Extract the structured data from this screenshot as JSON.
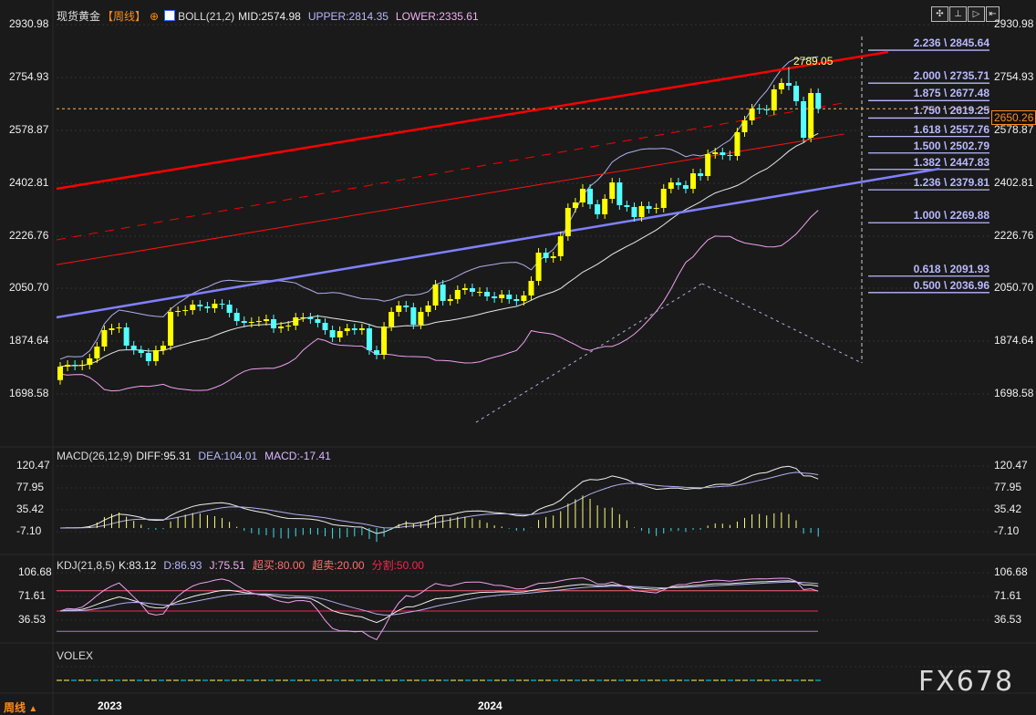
{
  "header": {
    "symbol": "现货黄金",
    "period": "【周线】",
    "boll_label": "BOLL(21,2)",
    "mid": "MID:2574.98",
    "upper": "UPPER:2814.35",
    "lower": "LOWER:2335.61"
  },
  "macd_header": {
    "label": "MACD(26,12,9)",
    "diff": "DIFF:95.31",
    "dea": "DEA:104.01",
    "macd": "MACD:-17.41"
  },
  "kdj_header": {
    "label": "KDJ(21,8,5)",
    "k": "K:83.12",
    "d": "D:86.93",
    "j": "J:75.51",
    "overbought": "超买:80.00",
    "oversold": "超卖:20.00",
    "split": "分割:50.00"
  },
  "volex_label": "VOLEX",
  "period_selector": "周线",
  "watermark": "FX678",
  "toolbar_icons": [
    "crosshair-icon",
    "fit-vertical-icon",
    "play-icon",
    "exit-icon"
  ],
  "price_axis": [
    "2930.98",
    "2754.93",
    "2578.87",
    "2402.81",
    "2226.76",
    "2050.70",
    "1874.64",
    "1698.58"
  ],
  "macd_axis": [
    "120.47",
    "77.95",
    "35.42",
    "-7.10"
  ],
  "kdj_axis": [
    "106.68",
    "71.61",
    "36.53"
  ],
  "time_axis": [
    "2023",
    "2024"
  ],
  "current_price": "2650.26",
  "high_label": "2789.05",
  "fib_levels": [
    {
      "label": "2.236 \\ 2845.64",
      "price": 2845.64
    },
    {
      "label": "2.000 \\ 2735.71",
      "price": 2735.71
    },
    {
      "label": "1.875 \\ 2677.48",
      "price": 2677.48
    },
    {
      "label": "1.750 \\ 2619.25",
      "price": 2619.25
    },
    {
      "label": "1.618 \\ 2557.76",
      "price": 2557.76
    },
    {
      "label": "1.500 \\ 2502.79",
      "price": 2502.79
    },
    {
      "label": "1.382 \\ 2447.83",
      "price": 2447.83
    },
    {
      "label": "1.236 \\ 2379.81",
      "price": 2379.81
    },
    {
      "label": "1.000 \\ 2269.88",
      "price": 2269.88
    },
    {
      "label": "0.618 \\ 2091.93",
      "price": 2091.93
    },
    {
      "label": "0.500 \\ 2036.96",
      "price": 2036.96
    }
  ],
  "colors": {
    "up": "#ffff00",
    "down": "#55ffff",
    "accent": "#ff8c1a",
    "trend_red": "#ff0000",
    "trend_blue": "#8080ff"
  },
  "chart_data": {
    "type": "candlestick",
    "period": "weekly",
    "closes": [
      1789.9,
      1795.9,
      1792.9,
      1795.9,
      1817.3,
      1856.8,
      1911.6,
      1917.6,
      1920.7,
      1859.9,
      1844.6,
      1835.5,
      1808.1,
      1844.6,
      1859.9,
      1972.4,
      1975.4,
      1978.5,
      1996.7,
      1990.7,
      1984.6,
      1999.8,
      1996.7,
      1969.4,
      1941.9,
      1935.9,
      1939.0,
      1941.9,
      1948.1,
      1917.6,
      1923.7,
      1926.8,
      1954.2,
      1954.2,
      1948.1,
      1935.9,
      1911.6,
      1887.2,
      1908.5,
      1917.6,
      1911.6,
      1917.6,
      1844.6,
      1829.4,
      1923.7,
      1972.4,
      1993.7,
      1987.6,
      1929.8,
      1972.4,
      1993.7,
      2063.7,
      2008.9,
      2015.1,
      2045.5,
      2051.6,
      2039.4,
      2039.4,
      2024.2,
      2018.1,
      2030.3,
      2015.1,
      2008.9,
      2027.2,
      2075.9,
      2170.2,
      2152.0,
      2158.1,
      2224.9,
      2319.3,
      2337.6,
      2383.2,
      2331.5,
      2298.0,
      2349.8,
      2404.4,
      2328.5,
      2322.4,
      2288.9,
      2325.4,
      2316.3,
      2319.3,
      2383.2,
      2404.4,
      2395.3,
      2383.2,
      2434.9,
      2425.8,
      2498.9,
      2504.9,
      2495.8,
      2492.8,
      2571.9,
      2611.5,
      2651.0,
      2648.0,
      2645.0,
      2715.0,
      2736.3,
      2727.1,
      2675.4,
      2553.6,
      2702.8,
      2650.26
    ],
    "first_open": 1745.0,
    "high": 2789.05,
    "price_range": [
      1698.58,
      2930.98
    ],
    "trendlines": [
      {
        "kind": "solid-red",
        "from": [
          -0.5,
          2383.2
        ],
        "to": [
          112.5,
          2839.7
        ]
      },
      {
        "kind": "dashed-red",
        "from": [
          -0.5,
          2213.0
        ],
        "to": [
          106.5,
          2670.0
        ]
      },
      {
        "kind": "thin-red",
        "from": [
          -0.5,
          2130.0
        ],
        "to": [
          106.5,
          2566.0
        ]
      },
      {
        "kind": "blue",
        "from": [
          -0.5,
          1954.2
        ],
        "to": [
          119.5,
          2450.0
        ]
      },
      {
        "kind": "dashed-purple",
        "from": [
          56.5,
          1604.0
        ],
        "to": [
          87.2,
          2067.0
        ]
      },
      {
        "kind": "dashed-purple",
        "from": [
          87.2,
          2067.0
        ],
        "to": [
          108.9,
          1802.0
        ]
      }
    ],
    "kdj_levels": {
      "overbought": 80,
      "split": 50,
      "oversold": 20
    }
  }
}
